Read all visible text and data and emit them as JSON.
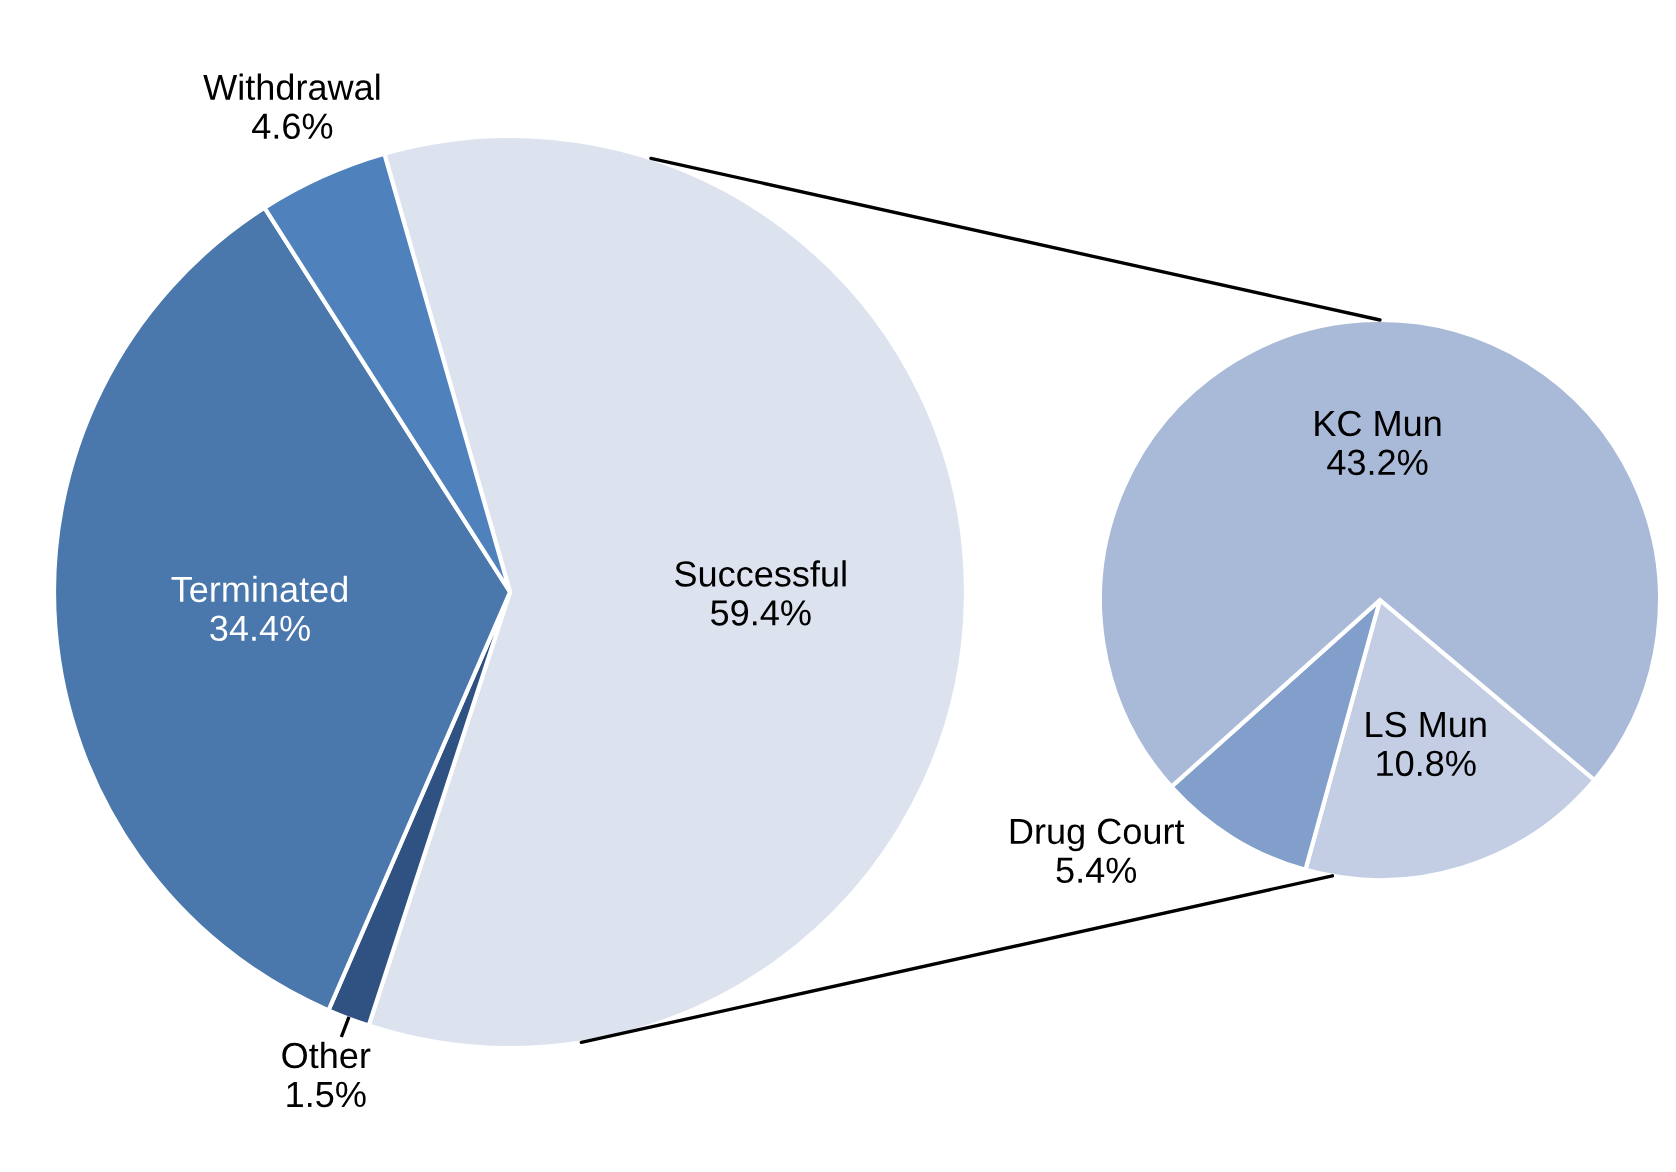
{
  "chart_data": [
    {
      "type": "pie",
      "categories": [
        "Successful",
        "Other",
        "Terminated",
        "Withdrawal"
      ],
      "values": [
        59.4,
        1.5,
        34.4,
        4.6
      ],
      "value_labels": [
        "59.4%",
        "1.5%",
        "34.4%",
        "4.6%"
      ],
      "colors": [
        "#dce3ef",
        "#2f5282",
        "#4a77ac",
        "#4f81bd"
      ],
      "legend": false
    },
    {
      "type": "pie",
      "categories": [
        "LS Mun",
        "Drug Court",
        "KC Mun"
      ],
      "values": [
        10.8,
        5.4,
        43.2
      ],
      "value_labels": [
        "10.8%",
        "5.4%",
        "43.2%"
      ],
      "colors": [
        "#c3cee4",
        "#829fcb",
        "#a9b9d8"
      ],
      "legend": false
    }
  ]
}
